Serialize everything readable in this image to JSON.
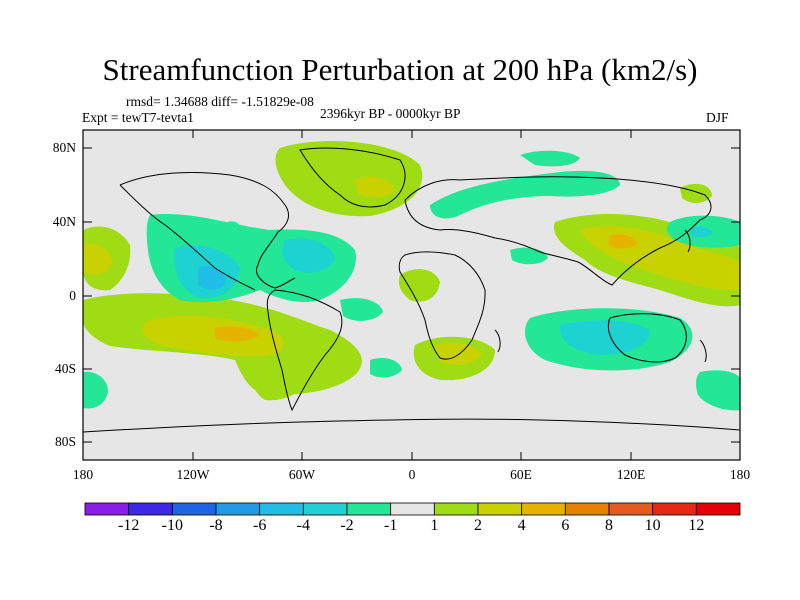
{
  "title": "Streamfunction Perturbation at 200 hPa (km2/s)",
  "stats": "rmsd= 1.34688 diff= -1.51829e-08",
  "experiment": "Expt = tewT7-tevta1",
  "period": "2396kyr BP - 0000kyr BP",
  "season": "DJF",
  "axes": {
    "y_ticks": [
      "80N",
      "40N",
      "0",
      "40S",
      "80S"
    ],
    "x_ticks": [
      "180",
      "120W",
      "60W",
      "0",
      "60E",
      "120E",
      "180"
    ]
  },
  "colorbar": {
    "labels": [
      "-12",
      "-10",
      "-8",
      "-6",
      "-4",
      "-2",
      "-1",
      "1",
      "2",
      "4",
      "6",
      "8",
      "10",
      "12"
    ],
    "colors": [
      "#8a1ee8",
      "#3c28e6",
      "#1e64e6",
      "#1e9ae6",
      "#1ebee6",
      "#1ed2d2",
      "#23e696",
      "#e6e6e6",
      "#9fdc14",
      "#c8d200",
      "#e6b400",
      "#e68200",
      "#e65a1e",
      "#e62814",
      "#e6000a"
    ]
  }
}
